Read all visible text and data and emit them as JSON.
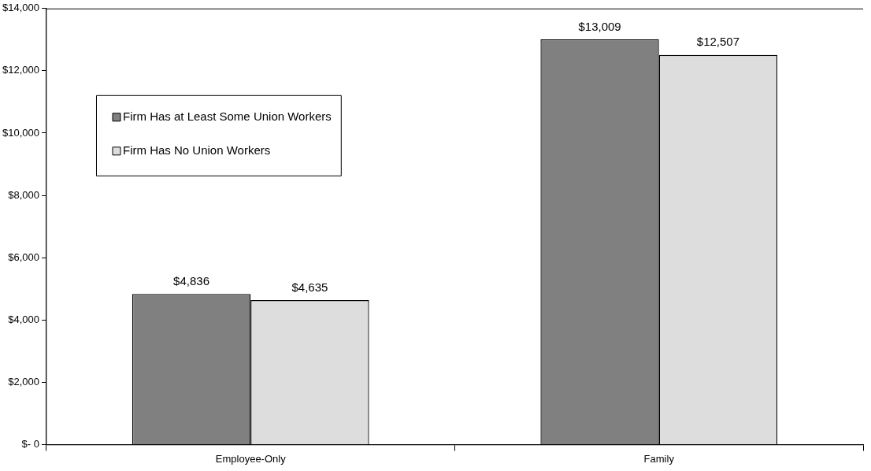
{
  "chart_data": {
    "type": "bar",
    "categories": [
      "Employee-Only",
      "Family"
    ],
    "series": [
      {
        "name": "Firm Has at Least Some Union Workers",
        "color": "#808080",
        "values": [
          4836,
          13009
        ],
        "value_labels": [
          "$4,836",
          "$13,009"
        ]
      },
      {
        "name": "Firm Has No Union Workers",
        "color": "#dddddd",
        "values": [
          4635,
          12507
        ],
        "value_labels": [
          "$4,635",
          "$12,507"
        ]
      }
    ],
    "ylim": [
      0,
      14000
    ],
    "yticks": [
      {
        "value": 0,
        "label": "$- 0"
      },
      {
        "value": 2000,
        "label": "$2,000"
      },
      {
        "value": 4000,
        "label": "$4,000"
      },
      {
        "value": 6000,
        "label": "$6,000"
      },
      {
        "value": 8000,
        "label": "$8,000"
      },
      {
        "value": 10000,
        "label": "$10,000"
      },
      {
        "value": 12000,
        "label": "$12,000"
      },
      {
        "value": 14000,
        "label": "$14,000"
      }
    ],
    "grid": false,
    "legend": "top left"
  }
}
